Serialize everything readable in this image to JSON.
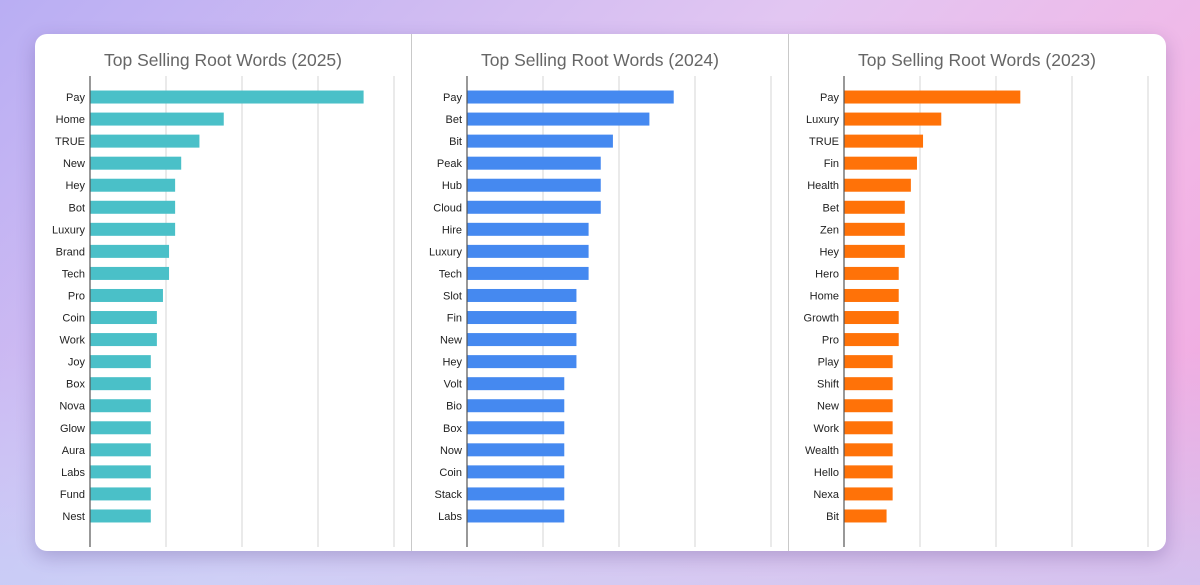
{
  "colors": {
    "panel_2025": "#4ac0c8",
    "panel_2024": "#4589f0",
    "panel_2023": "#ff7208",
    "title_text": "#666666",
    "label_text": "#222222",
    "grid": "#d6d6d6",
    "axis": "#555555"
  },
  "chart_data": [
    {
      "type": "bar",
      "orientation": "horizontal",
      "title": "Top Selling Root Words (2025)",
      "xlim": [
        0,
        200
      ],
      "grid": true,
      "categories": [
        "Pay",
        "Home",
        "TRUE",
        "New",
        "Hey",
        "Bot",
        "Luxury",
        "Brand",
        "Tech",
        "Pro",
        "Coin",
        "Work",
        "Joy",
        "Box",
        "Nova",
        "Glow",
        "Aura",
        "Labs",
        "Fund",
        "Nest"
      ],
      "values": [
        180,
        88,
        72,
        60,
        56,
        56,
        56,
        52,
        52,
        48,
        44,
        44,
        40,
        40,
        40,
        40,
        40,
        40,
        40,
        40
      ]
    },
    {
      "type": "bar",
      "orientation": "horizontal",
      "title": "Top Selling Root Words (2024)",
      "xlim": [
        0,
        200
      ],
      "grid": true,
      "categories": [
        "Pay",
        "Bet",
        "Bit",
        "Peak",
        "Hub",
        "Cloud",
        "Hire",
        "Luxury",
        "Tech",
        "Slot",
        "Fin",
        "New",
        "Hey",
        "Volt",
        "Bio",
        "Box",
        "Now",
        "Coin",
        "Stack",
        "Labs"
      ],
      "values": [
        136,
        120,
        96,
        88,
        88,
        88,
        80,
        80,
        80,
        72,
        72,
        72,
        72,
        64,
        64,
        64,
        64,
        64,
        64,
        64
      ]
    },
    {
      "type": "bar",
      "orientation": "horizontal",
      "title": "Top Selling Root Words (2023)",
      "xlim": [
        0,
        200
      ],
      "grid": true,
      "categories": [
        "Pay",
        "Luxury",
        "TRUE",
        "Fin",
        "Health",
        "Bet",
        "Zen",
        "Hey",
        "Hero",
        "Home",
        "Growth",
        "Pro",
        "Play",
        "Shift",
        "New",
        "Work",
        "Wealth",
        "Hello",
        "Nexa",
        "Bit"
      ],
      "values": [
        116,
        64,
        52,
        48,
        44,
        40,
        40,
        40,
        36,
        36,
        36,
        36,
        32,
        32,
        32,
        32,
        32,
        32,
        32,
        28
      ]
    }
  ]
}
